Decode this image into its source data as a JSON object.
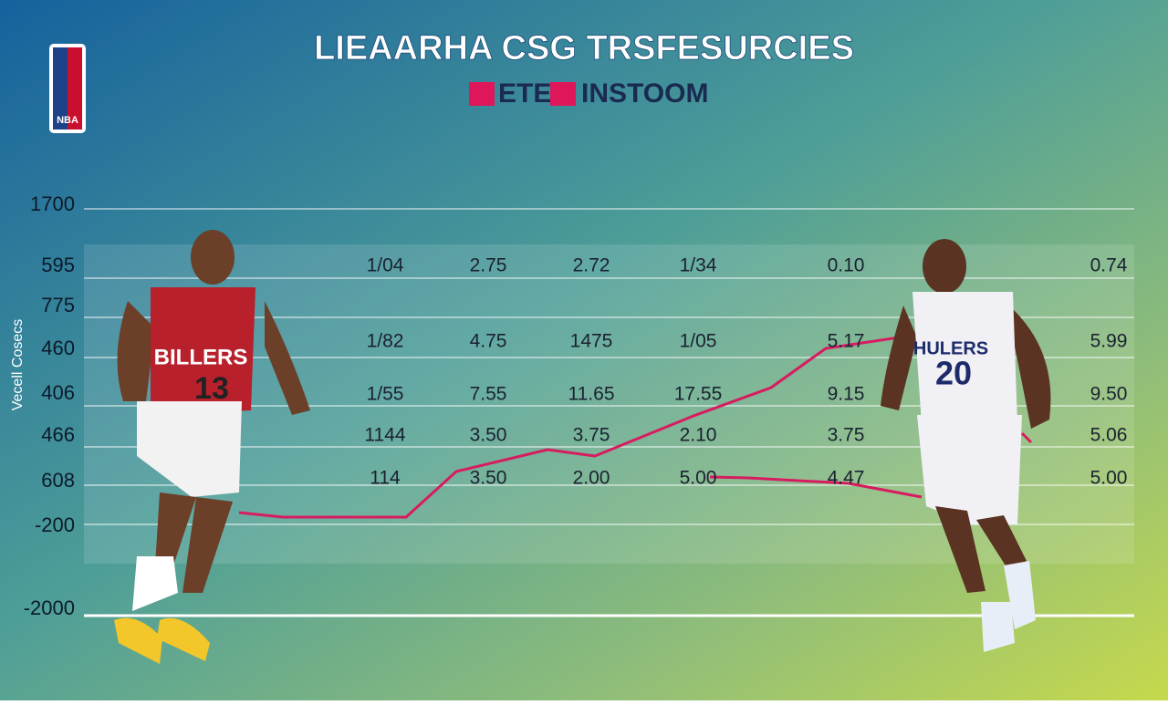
{
  "logo": "NBA",
  "title": "LIEAARHA CSG TRSFESURCIES",
  "legend": [
    "ETE",
    "INSTOOM"
  ],
  "axis_label": "Vecell Cosecs",
  "row_labels": [
    "1700",
    "595",
    "775",
    "460",
    "406",
    "466",
    "608",
    "-200",
    "-2000"
  ],
  "table": {
    "rows": [
      [
        "1/04",
        "2.75",
        "2.72",
        "1/34",
        "0.10",
        "0.74"
      ],
      [
        "1/82",
        "4.75",
        "1475",
        "1/05",
        "5.17",
        "5.99"
      ],
      [
        "1/55",
        "7.55",
        "11.65",
        "17.55",
        "9.15",
        "9.50"
      ],
      [
        "1144",
        "3.50",
        "3.75",
        "2.10",
        "3.75",
        "5.06"
      ],
      [
        "114",
        "3.50",
        "2.00",
        "5.00",
        "4.47",
        "5.00"
      ]
    ]
  },
  "players": [
    {
      "team": "BILLERS",
      "number": "13"
    },
    {
      "team": "HULERS",
      "number": "20"
    }
  ]
}
